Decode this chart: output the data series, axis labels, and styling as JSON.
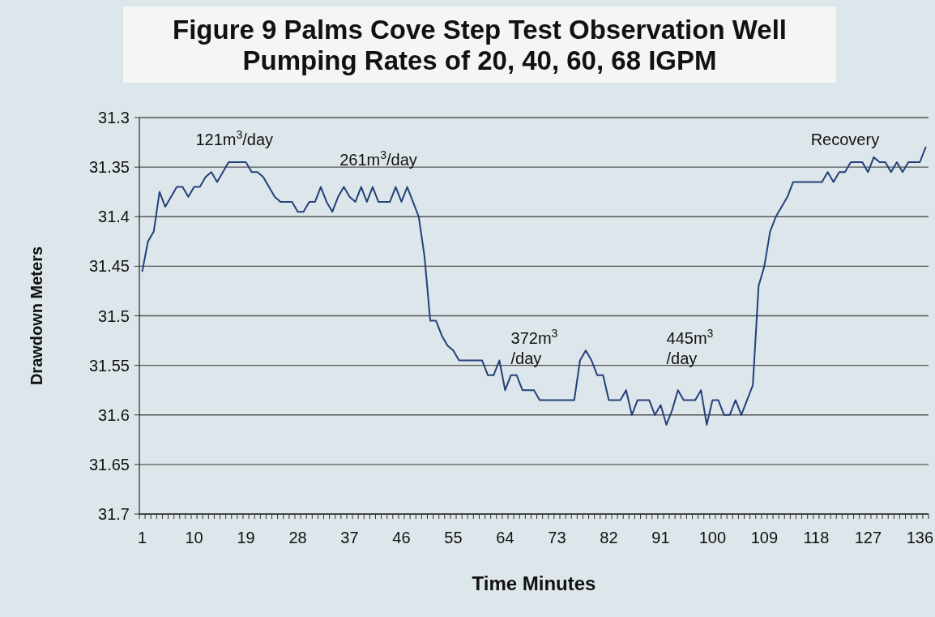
{
  "chart_data": {
    "type": "line",
    "title": "Figure 9 Palms Cove Step Test Observation Well\nPumping Rates of 20, 40, 60, 68 IGPM",
    "xlabel": "Time Minutes",
    "ylabel": "Drawdown Meters",
    "categories": [
      "1",
      null,
      null,
      null,
      null,
      null,
      null,
      null,
      null,
      "10",
      null,
      null,
      null,
      null,
      null,
      null,
      null,
      null,
      "19",
      null,
      null,
      null,
      null,
      null,
      null,
      null,
      null,
      "28",
      null,
      null,
      null,
      null,
      null,
      null,
      null,
      null,
      "37",
      null,
      null,
      null,
      null,
      null,
      null,
      null,
      null,
      "46",
      null,
      null,
      null,
      null,
      null,
      null,
      null,
      null,
      "55",
      null,
      null,
      null,
      null,
      null,
      null,
      null,
      null,
      "64",
      null,
      null,
      null,
      null,
      null,
      null,
      null,
      null,
      "73",
      null,
      null,
      null,
      null,
      null,
      null,
      null,
      null,
      "82",
      null,
      null,
      null,
      null,
      null,
      null,
      null,
      null,
      "91",
      null,
      null,
      null,
      null,
      null,
      null,
      null,
      null,
      "100",
      null,
      null,
      null,
      null,
      null,
      null,
      null,
      null,
      "109",
      null,
      null,
      null,
      null,
      null,
      null,
      null,
      null,
      "118",
      null,
      null,
      null,
      null,
      null,
      null,
      null,
      null,
      "127",
      null,
      null,
      null,
      null,
      null,
      null,
      null,
      null,
      "136",
      null
    ],
    "series": [
      {
        "color": "#23407a",
        "values": [
          31.455,
          31.425,
          31.415,
          31.375,
          31.39,
          31.38,
          31.37,
          31.37,
          31.38,
          31.37,
          31.37,
          31.36,
          31.355,
          31.365,
          31.355,
          31.345,
          31.345,
          31.345,
          31.345,
          31.355,
          31.355,
          31.36,
          31.37,
          31.38,
          31.385,
          31.385,
          31.385,
          31.395,
          31.395,
          31.385,
          31.385,
          31.37,
          31.385,
          31.395,
          31.38,
          31.37,
          31.38,
          31.385,
          31.37,
          31.385,
          31.37,
          31.385,
          31.385,
          31.385,
          31.37,
          31.385,
          31.37,
          31.385,
          31.4,
          31.44,
          31.505,
          31.505,
          31.52,
          31.53,
          31.535,
          31.545,
          31.545,
          31.545,
          31.545,
          31.545,
          31.56,
          31.56,
          31.545,
          31.575,
          31.56,
          31.56,
          31.575,
          31.575,
          31.575,
          31.585,
          31.585,
          31.585,
          31.585,
          31.585,
          31.585,
          31.585,
          31.545,
          31.535,
          31.545,
          31.56,
          31.56,
          31.585,
          31.585,
          31.585,
          31.575,
          31.6,
          31.585,
          31.585,
          31.585,
          31.6,
          31.59,
          31.61,
          31.595,
          31.575,
          31.585,
          31.585,
          31.585,
          31.575,
          31.61,
          31.585,
          31.585,
          31.6,
          31.6,
          31.585,
          31.6,
          31.585,
          31.57,
          31.47,
          31.45,
          31.415,
          31.4,
          31.39,
          31.38,
          31.365,
          31.365,
          31.365,
          31.365,
          31.365,
          31.365,
          31.355,
          31.365,
          31.355,
          31.355,
          31.345,
          31.345,
          31.345,
          31.355,
          31.34,
          31.345,
          31.345,
          31.355,
          31.345,
          31.355,
          31.345,
          31.345,
          31.345,
          31.33
        ]
      }
    ],
    "ylim": [
      31.7,
      31.3
    ],
    "yticks": [
      31.3,
      31.35,
      31.4,
      31.45,
      31.5,
      31.55,
      31.6,
      31.65,
      31.7
    ],
    "grid": "y",
    "annotations": [
      "121m$^{3}$/day",
      "261m$^{3}$/day",
      "372m$^{3}$/day",
      "445m$^{3}$/day",
      "Recovery"
    ]
  }
}
